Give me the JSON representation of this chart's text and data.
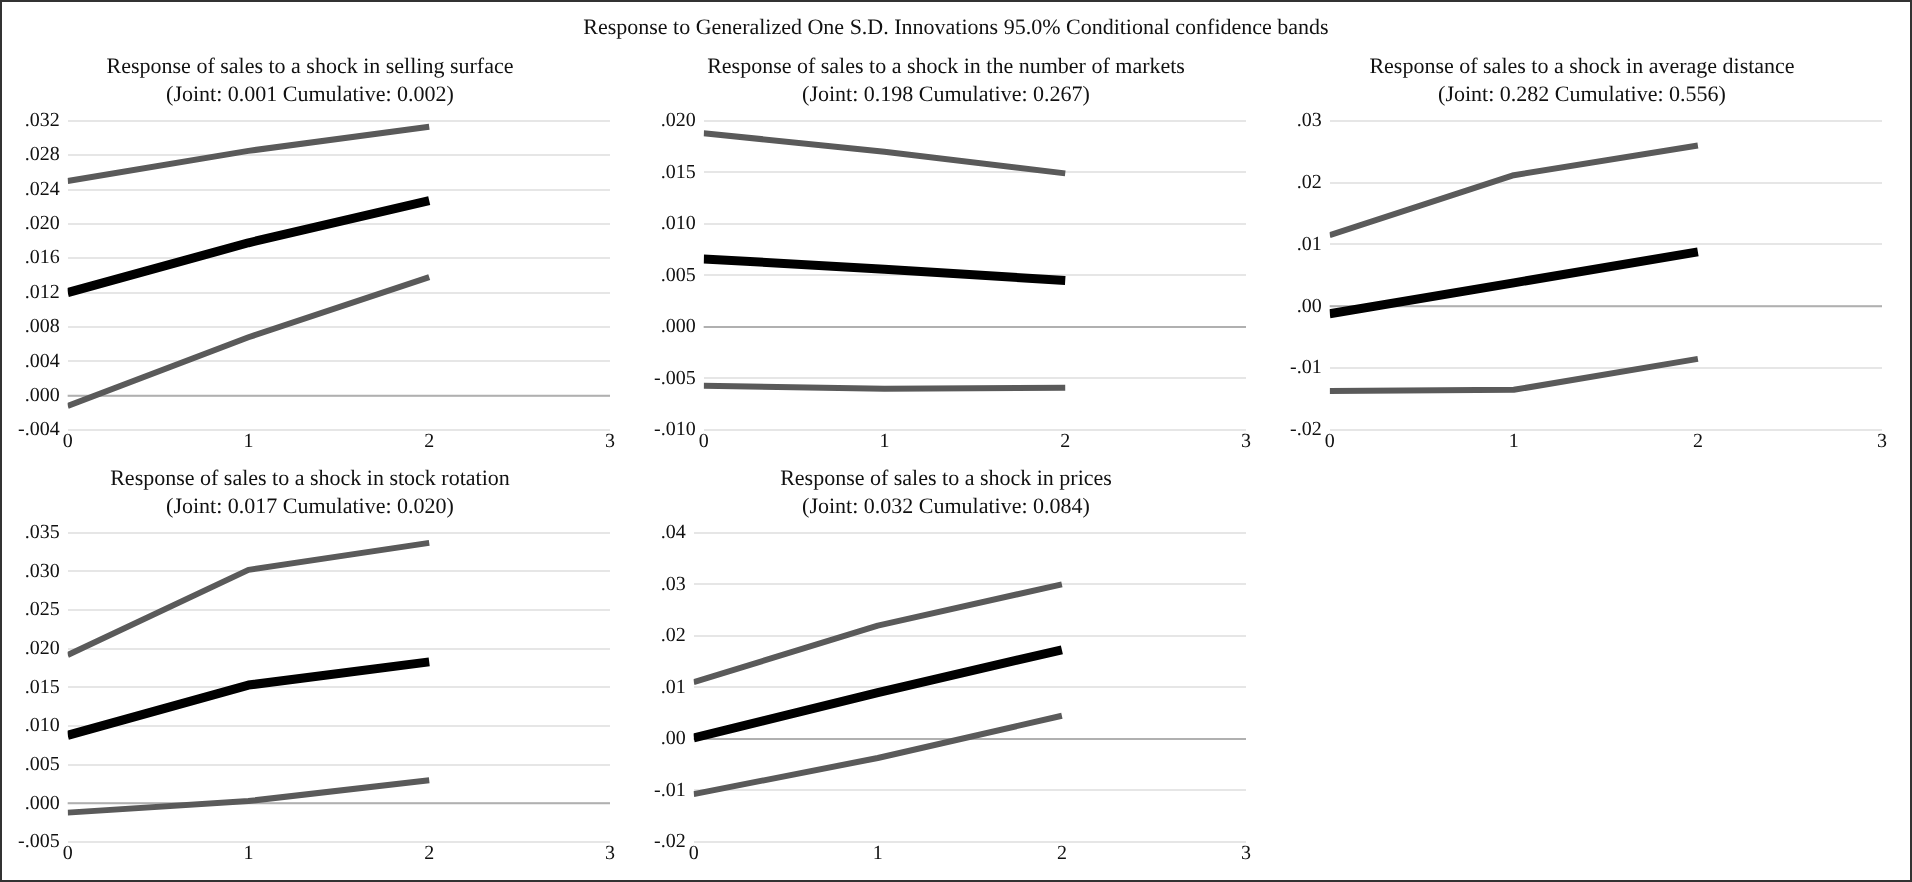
{
  "chart_data": [
    {
      "type": "other",
      "title": "Response to Generalized One S.D. Innovations 95.0% Conditional confidence bands"
    },
    {
      "type": "line",
      "title": "Response of sales to a shock in selling surface",
      "subtitle": "(Joint: 0.001 Cumulative: 0.002)",
      "x": [
        0,
        1,
        2
      ],
      "xlim": [
        0,
        3
      ],
      "xticks": [
        0,
        1,
        2,
        3
      ],
      "ylim": [
        -0.004,
        0.032
      ],
      "yticks": [
        {
          "value": -0.004,
          "label": "-.004"
        },
        {
          "value": 0,
          "label": ".000"
        },
        {
          "value": 0.004,
          "label": ".004"
        },
        {
          "value": 0.008,
          "label": ".008"
        },
        {
          "value": 0.012,
          "label": ".012"
        },
        {
          "value": 0.016,
          "label": ".016"
        },
        {
          "value": 0.02,
          "label": ".020"
        },
        {
          "value": 0.024,
          "label": ".024"
        },
        {
          "value": 0.028,
          "label": ".028"
        },
        {
          "value": 0.032,
          "label": ".032"
        }
      ],
      "grid": "y",
      "ref_lines": [
        {
          "axis": "y",
          "value": 0,
          "color": "#b0b0b0"
        }
      ],
      "series": [
        {
          "color": "#5a5a5a",
          "values": [
            0.025,
            0.0285,
            0.0313
          ]
        },
        {
          "color": "#000000",
          "values": [
            0.012,
            0.0178,
            0.0227
          ]
        },
        {
          "color": "#5a5a5a",
          "values": [
            -0.0012,
            0.0068,
            0.0138
          ]
        }
      ]
    },
    {
      "type": "line",
      "title": "Response of sales to a shock in the number of markets",
      "subtitle": "(Joint: 0.198 Cumulative: 0.267)",
      "x": [
        0,
        1,
        2
      ],
      "xlim": [
        0,
        3
      ],
      "xticks": [
        0,
        1,
        2,
        3
      ],
      "ylim": [
        -0.01,
        0.02
      ],
      "yticks": [
        {
          "value": -0.01,
          "label": "-.010"
        },
        {
          "value": -0.005,
          "label": "-.005"
        },
        {
          "value": 0,
          "label": ".000"
        },
        {
          "value": 0.005,
          "label": ".005"
        },
        {
          "value": 0.01,
          "label": ".010"
        },
        {
          "value": 0.015,
          "label": ".015"
        },
        {
          "value": 0.02,
          "label": ".020"
        }
      ],
      "grid": "y",
      "ref_lines": [
        {
          "axis": "y",
          "value": 0,
          "color": "#b0b0b0"
        }
      ],
      "series": [
        {
          "color": "#5a5a5a",
          "values": [
            0.0188,
            0.017,
            0.0149
          ]
        },
        {
          "color": "#000000",
          "values": [
            0.0066,
            0.0056,
            0.0045
          ]
        },
        {
          "color": "#5a5a5a",
          "values": [
            -0.0057,
            -0.006,
            -0.0059
          ]
        }
      ]
    },
    {
      "type": "line",
      "title": "Response of sales to a shock in average distance",
      "subtitle": "(Joint: 0.282 Cumulative: 0.556)",
      "x": [
        0,
        1,
        2
      ],
      "xlim": [
        0,
        3
      ],
      "xticks": [
        0,
        1,
        2,
        3
      ],
      "ylim": [
        -0.02,
        0.03
      ],
      "yticks": [
        {
          "value": -0.02,
          "label": "-.02"
        },
        {
          "value": -0.01,
          "label": "-.01"
        },
        {
          "value": 0,
          "label": ".00"
        },
        {
          "value": 0.01,
          "label": ".01"
        },
        {
          "value": 0.02,
          "label": ".02"
        },
        {
          "value": 0.03,
          "label": ".03"
        }
      ],
      "grid": "y",
      "ref_lines": [
        {
          "axis": "y",
          "value": 0,
          "color": "#b0b0b0"
        }
      ],
      "series": [
        {
          "color": "#5a5a5a",
          "values": [
            0.0115,
            0.0212,
            0.026
          ]
        },
        {
          "color": "#000000",
          "values": [
            -0.0012,
            0.0038,
            0.0088
          ]
        },
        {
          "color": "#5a5a5a",
          "values": [
            -0.0137,
            -0.0135,
            -0.0085
          ]
        }
      ]
    },
    {
      "type": "line",
      "title": "Response of sales to a shock in stock rotation",
      "subtitle": "(Joint: 0.017 Cumulative: 0.020)",
      "x": [
        0,
        1,
        2
      ],
      "xlim": [
        0,
        3
      ],
      "xticks": [
        0,
        1,
        2,
        3
      ],
      "ylim": [
        -0.005,
        0.035
      ],
      "yticks": [
        {
          "value": -0.005,
          "label": "-.005"
        },
        {
          "value": 0,
          "label": ".000"
        },
        {
          "value": 0.005,
          "label": ".005"
        },
        {
          "value": 0.01,
          "label": ".010"
        },
        {
          "value": 0.015,
          "label": ".015"
        },
        {
          "value": 0.02,
          "label": ".020"
        },
        {
          "value": 0.025,
          "label": ".025"
        },
        {
          "value": 0.03,
          "label": ".030"
        },
        {
          "value": 0.035,
          "label": ".035"
        }
      ],
      "grid": "y",
      "ref_lines": [
        {
          "axis": "y",
          "value": 0,
          "color": "#b0b0b0"
        }
      ],
      "series": [
        {
          "color": "#5a5a5a",
          "values": [
            0.0192,
            0.0302,
            0.0337
          ]
        },
        {
          "color": "#000000",
          "values": [
            0.0088,
            0.0153,
            0.0183
          ]
        },
        {
          "color": "#5a5a5a",
          "values": [
            -0.0012,
            0.0003,
            0.003
          ]
        }
      ]
    },
    {
      "type": "line",
      "title": "Response of sales to a shock in prices",
      "subtitle": "(Joint: 0.032 Cumulative: 0.084)",
      "x": [
        0,
        1,
        2
      ],
      "xlim": [
        0,
        3
      ],
      "xticks": [
        0,
        1,
        2,
        3
      ],
      "ylim": [
        -0.02,
        0.04
      ],
      "yticks": [
        {
          "value": -0.02,
          "label": "-.02"
        },
        {
          "value": -0.01,
          "label": "-.01"
        },
        {
          "value": 0,
          "label": ".00"
        },
        {
          "value": 0.01,
          "label": ".01"
        },
        {
          "value": 0.02,
          "label": ".02"
        },
        {
          "value": 0.03,
          "label": ".03"
        },
        {
          "value": 0.04,
          "label": ".04"
        }
      ],
      "grid": "y",
      "ref_lines": [
        {
          "axis": "y",
          "value": 0,
          "color": "#b0b0b0"
        }
      ],
      "series": [
        {
          "color": "#5a5a5a",
          "values": [
            0.011,
            0.022,
            0.03
          ]
        },
        {
          "color": "#000000",
          "values": [
            0.0002,
            0.009,
            0.0173
          ]
        },
        {
          "color": "#5a5a5a",
          "values": [
            -0.0107,
            -0.0037,
            0.0045
          ]
        }
      ]
    }
  ]
}
